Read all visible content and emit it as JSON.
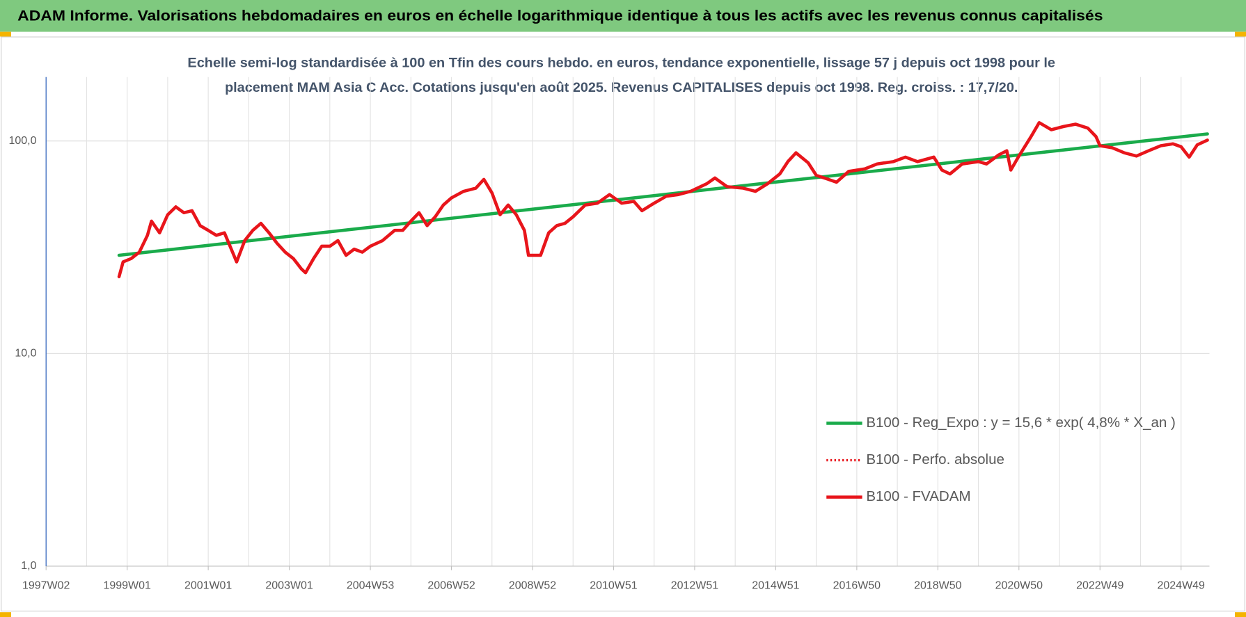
{
  "chart_data": {
    "type": "line",
    "header": "ADAM Informe. Valorisations hebdomadaires en euros en échelle logarithmique identique à tous les actifs avec les revenus connus capitalisés",
    "subtitle": [
      "Echelle semi-log standardisée à 100 en Tfin des cours hebdo. en euros, tendance exponentielle, lissage 57 j depuis oct 1998 pour le",
      "placement MAM Asia C Acc. Cotations jusqu'en août 2025. Revenus CAPITALISES depuis oct 1998. Reg. croiss. : 17,7/20."
    ],
    "log_scale": true,
    "grid": true,
    "legend": "bottom-right",
    "ylim": [
      1,
      200
    ],
    "yticks": [
      {
        "value": 1,
        "label": "1,0"
      },
      {
        "value": 10,
        "label": "10,0"
      },
      {
        "value": 100,
        "label": "100,0"
      }
    ],
    "xlim": [
      1997.0,
      2025.7
    ],
    "xticks": [
      {
        "value": 1997.0,
        "label": "1997W02"
      },
      {
        "value": 1999.0,
        "label": "1999W01"
      },
      {
        "value": 2001.0,
        "label": "2001W01"
      },
      {
        "value": 2003.0,
        "label": "2003W01"
      },
      {
        "value": 2005.0,
        "label": "2004W53"
      },
      {
        "value": 2007.0,
        "label": "2006W52"
      },
      {
        "value": 2009.0,
        "label": "2008W52"
      },
      {
        "value": 2011.0,
        "label": "2010W51"
      },
      {
        "value": 2013.0,
        "label": "2012W51"
      },
      {
        "value": 2015.0,
        "label": "2014W51"
      },
      {
        "value": 2017.0,
        "label": "2016W50"
      },
      {
        "value": 2019.0,
        "label": "2018W50"
      },
      {
        "value": 2021.0,
        "label": "2020W50"
      },
      {
        "value": 2023.0,
        "label": "2022W49"
      },
      {
        "value": 2025.0,
        "label": "2024W49"
      }
    ],
    "xminorticks": [
      1998,
      2000,
      2002,
      2004,
      2006,
      2008,
      2010,
      2012,
      2014,
      2016,
      2018,
      2020,
      2022,
      2024
    ],
    "x": [
      1998.8,
      1998.9,
      1999.1,
      1999.3,
      1999.5,
      1999.6,
      1999.8,
      2000.0,
      2000.2,
      2000.4,
      2000.6,
      2000.8,
      2001.0,
      2001.2,
      2001.4,
      2001.6,
      2001.7,
      2001.9,
      2002.1,
      2002.3,
      2002.5,
      2002.7,
      2002.9,
      2003.1,
      2003.3,
      2003.4,
      2003.6,
      2003.8,
      2004.0,
      2004.2,
      2004.4,
      2004.6,
      2004.8,
      2005.0,
      2005.3,
      2005.6,
      2005.8,
      2006.0,
      2006.2,
      2006.4,
      2006.6,
      2006.8,
      2007.0,
      2007.3,
      2007.6,
      2007.8,
      2008.0,
      2008.2,
      2008.4,
      2008.6,
      2008.8,
      2008.9,
      2009.2,
      2009.4,
      2009.6,
      2009.8,
      2010.0,
      2010.3,
      2010.6,
      2010.9,
      2011.2,
      2011.5,
      2011.7,
      2012.0,
      2012.3,
      2012.6,
      2012.9,
      2013.3,
      2013.5,
      2013.8,
      2014.2,
      2014.5,
      2014.8,
      2015.1,
      2015.3,
      2015.5,
      2015.8,
      2016.0,
      2016.3,
      2016.5,
      2016.8,
      2017.2,
      2017.5,
      2017.9,
      2018.2,
      2018.5,
      2018.9,
      2019.1,
      2019.3,
      2019.6,
      2020.0,
      2020.2,
      2020.5,
      2020.7,
      2020.8,
      2021.0,
      2021.3,
      2021.5,
      2021.8,
      2022.1,
      2022.4,
      2022.7,
      2022.9,
      2023.0,
      2023.3,
      2023.6,
      2023.9,
      2024.2,
      2024.5,
      2024.8,
      2025.0,
      2025.2,
      2025.4,
      2025.65
    ],
    "series": [
      {
        "name": "B100 - Reg_Expo : y = 15,6 * exp( 4,8% *  X_an )",
        "color": "#1aab4b",
        "style": "solid",
        "x": [
          1998.8,
          2025.65
        ],
        "values": [
          29,
          108
        ]
      },
      {
        "name": "B100 - Perfo. absolue",
        "color": "#e8151b",
        "style": "dotted",
        "values": [
          23,
          27,
          28,
          30,
          36,
          42,
          37,
          45,
          49,
          46,
          47,
          40,
          38,
          36,
          37,
          30,
          27,
          34,
          38,
          41,
          37,
          33,
          30,
          28,
          25,
          24,
          28,
          32,
          32,
          34,
          29,
          31,
          30,
          32,
          34,
          38,
          38,
          42,
          46,
          40,
          44,
          50,
          54,
          58,
          60,
          66,
          57,
          45,
          50,
          45,
          38,
          29,
          29,
          37,
          40,
          41,
          44,
          50,
          51,
          56,
          51,
          52,
          47,
          51,
          55,
          56,
          58,
          63,
          67,
          61,
          60,
          58,
          63,
          70,
          80,
          88,
          79,
          69,
          66,
          64,
          72,
          74,
          78,
          80,
          84,
          80,
          84,
          73,
          70,
          78,
          80,
          78,
          86,
          90,
          73,
          85,
          105,
          122,
          113,
          117,
          120,
          115,
          105,
          95,
          93,
          88,
          85,
          90,
          95,
          97,
          94,
          84,
          96,
          101
        ]
      },
      {
        "name": "B100 - FVADAM",
        "color": "#e8151b",
        "style": "solid",
        "values": [
          23,
          27,
          28,
          30,
          36,
          42,
          37,
          45,
          49,
          46,
          47,
          40,
          38,
          36,
          37,
          30,
          27,
          34,
          38,
          41,
          37,
          33,
          30,
          28,
          25,
          24,
          28,
          32,
          32,
          34,
          29,
          31,
          30,
          32,
          34,
          38,
          38,
          42,
          46,
          40,
          44,
          50,
          54,
          58,
          60,
          66,
          57,
          45,
          50,
          45,
          38,
          29,
          29,
          37,
          40,
          41,
          44,
          50,
          51,
          56,
          51,
          52,
          47,
          51,
          55,
          56,
          58,
          63,
          67,
          61,
          60,
          58,
          63,
          70,
          80,
          88,
          79,
          69,
          66,
          64,
          72,
          74,
          78,
          80,
          84,
          80,
          84,
          73,
          70,
          78,
          80,
          78,
          86,
          90,
          73,
          85,
          105,
          122,
          113,
          117,
          120,
          115,
          105,
          95,
          93,
          88,
          85,
          90,
          95,
          97,
          94,
          84,
          96,
          101
        ]
      }
    ]
  }
}
